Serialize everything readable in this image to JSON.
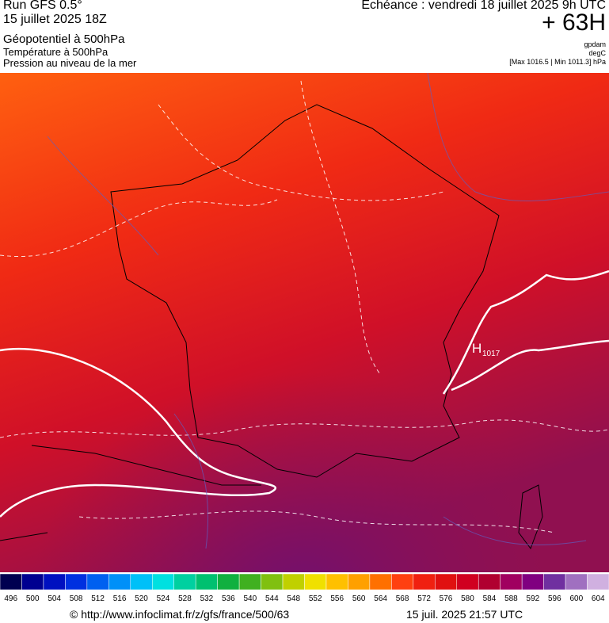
{
  "header": {
    "run": "Run GFS 0.5°",
    "date": "15 juillet 2025 18Z",
    "field1": "Géopotentiel à 500hPa",
    "field2": "Température à 500hPa",
    "field3": "Pression au niveau de la mer",
    "valid": "Echéance : vendredi 18 juillet 2025 9h UTC",
    "lead": "+ 63H",
    "unit1": "gpdam",
    "unit2": "degC",
    "range": "[Max 1016.5 | Min 1011.3] hPa"
  },
  "map": {
    "high_label": "H",
    "high_value": "1017"
  },
  "legend": {
    "values": [
      496,
      500,
      504,
      508,
      512,
      516,
      520,
      524,
      528,
      532,
      536,
      540,
      544,
      548,
      552,
      556,
      560,
      564,
      568,
      572,
      576,
      580,
      584,
      588,
      592,
      596,
      600,
      604
    ],
    "colors": [
      "#000050",
      "#000090",
      "#0010c0",
      "#0030e0",
      "#0060f0",
      "#0090f8",
      "#00c0f8",
      "#00e0e0",
      "#00d0a0",
      "#00c070",
      "#10b040",
      "#40b020",
      "#80c010",
      "#c0d000",
      "#f0e000",
      "#ffc000",
      "#ffa000",
      "#ff7000",
      "#ff4010",
      "#f02010",
      "#e01010",
      "#d00020",
      "#b00030",
      "#a00060",
      "#800080",
      "#7030a0",
      "#a070c0",
      "#d0b0e0"
    ]
  },
  "footer": {
    "url": "© http://www.infoclimat.fr/z/gfs/france/500/63",
    "time": "15 juil. 2025 21:57 UTC"
  }
}
